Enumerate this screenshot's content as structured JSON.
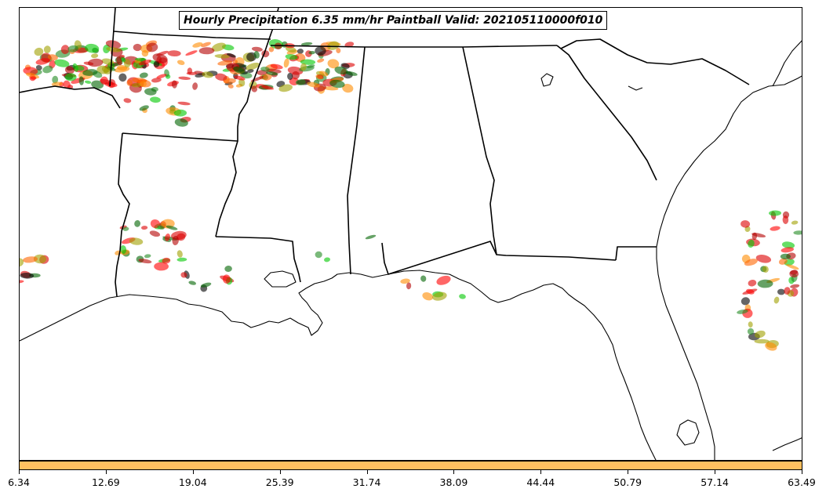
{
  "title": "Hourly Precipitation 6.35 mm/hr Paintball Valid: 202105110000f010",
  "colorbar": {
    "color": "#ffc060",
    "ticks": [
      "6.34",
      "12.69",
      "19.04",
      "25.39",
      "31.74",
      "38.09",
      "44.44",
      "50.79",
      "57.14",
      "63.49"
    ]
  },
  "member_colors": [
    "#ff0000",
    "#ff6600",
    "#00c800",
    "#006400",
    "#b40000",
    "#000000",
    "#a0a000",
    "#ff8c00",
    "#dc0000",
    "#228b22"
  ]
}
